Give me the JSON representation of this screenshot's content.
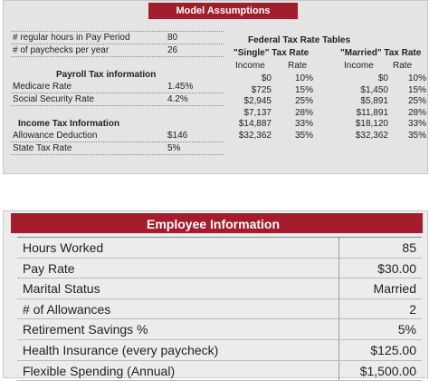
{
  "model_assumptions": {
    "title": "Model Assumptions",
    "rows": [
      {
        "label": "# regular hours in Pay Period",
        "value": "80"
      },
      {
        "label": "# of paychecks per year",
        "value": "26"
      }
    ],
    "payroll_header": "Payroll Tax information",
    "payroll_rows": [
      {
        "label": "Medicare Rate",
        "value": "1.45%"
      },
      {
        "label": "Social Security Rate",
        "value": "4.2%"
      }
    ],
    "income_header": "Income Tax Information",
    "income_rows": [
      {
        "label": "Allowance Deduction",
        "value": "$146"
      },
      {
        "label": "State Tax Rate",
        "value": "5%"
      }
    ],
    "federal": {
      "title": "Federal Tax Rate Tables",
      "single": {
        "caption": "\"Single\" Tax Rate",
        "col_income": "Income",
        "col_rate": "Rate",
        "rows": [
          [
            "$0",
            "10%"
          ],
          [
            "$725",
            "15%"
          ],
          [
            "$2,945",
            "25%"
          ],
          [
            "$7,137",
            "28%"
          ],
          [
            "$14,887",
            "33%"
          ],
          [
            "$32,362",
            "35%"
          ]
        ]
      },
      "married": {
        "caption": "\"Married\" Tax Rate",
        "col_income": "Income",
        "col_rate": "Rate",
        "rows": [
          [
            "$0",
            "10%"
          ],
          [
            "$1,450",
            "15%"
          ],
          [
            "$5,891",
            "25%"
          ],
          [
            "$11,891",
            "28%"
          ],
          [
            "$18,120",
            "33%"
          ],
          [
            "$32,362",
            "35%"
          ]
        ]
      }
    }
  },
  "employee_information": {
    "title": "Employee Information",
    "rows": [
      {
        "label": "Hours Worked",
        "value": "85"
      },
      {
        "label": "Pay Rate",
        "value": "$30.00"
      },
      {
        "label": "Marital Status",
        "value": "Married"
      },
      {
        "label": "# of Allowances",
        "value": "2"
      },
      {
        "label": "Retirement Savings %",
        "value": "5%"
      },
      {
        "label": "Health Insurance (every paycheck)",
        "value": "$125.00"
      },
      {
        "label": "Flexible Spending (Annual)",
        "value": "$1,500.00"
      }
    ]
  }
}
